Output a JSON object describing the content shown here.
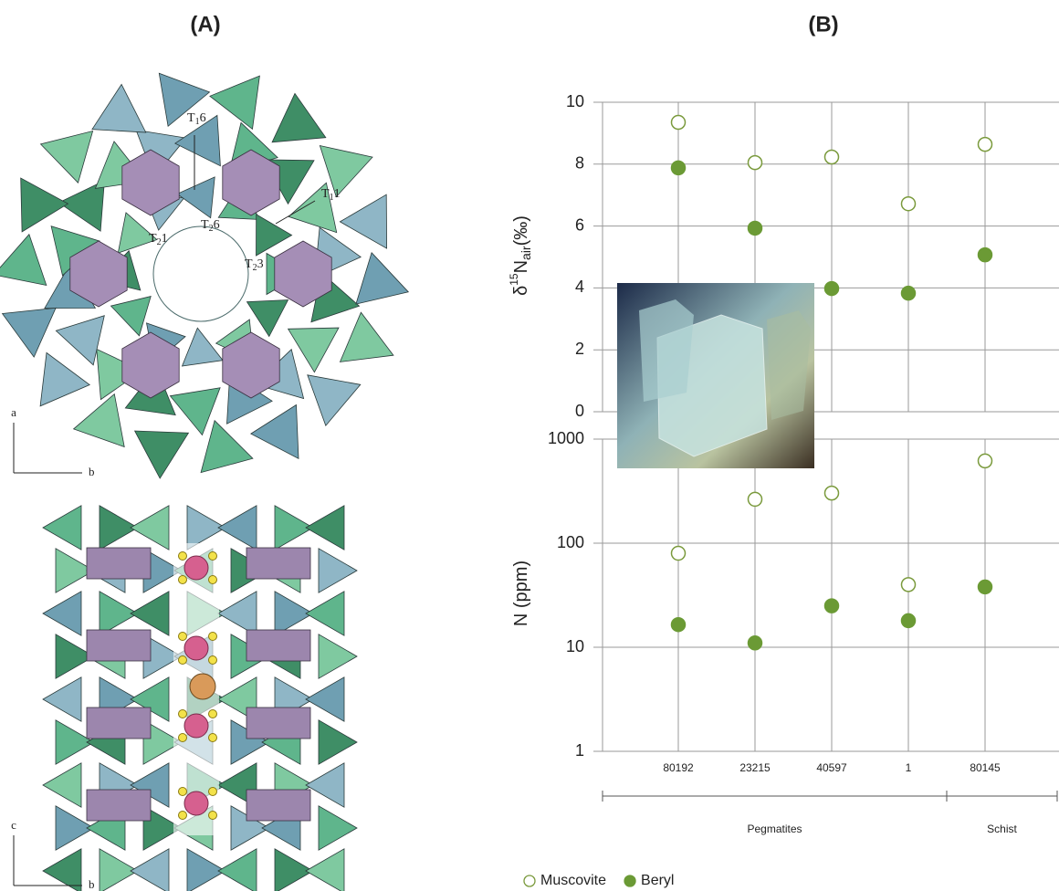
{
  "panels": {
    "left": "(A)",
    "right": "(B)"
  },
  "diagram": {
    "labels": [
      [
        "T",
        "1",
        "6"
      ],
      [
        "T",
        "1",
        "1"
      ],
      [
        "T",
        "2",
        "6"
      ],
      [
        "T",
        "2",
        "1"
      ],
      [
        "T",
        "2",
        "3"
      ]
    ],
    "axes_top": [
      "a",
      "b"
    ],
    "axes_bottom": [
      "c",
      "b"
    ]
  },
  "chart_data": [
    {
      "type": "scatter",
      "ylabel": [
        "δ",
        "15",
        "N",
        "air",
        "(‰)"
      ],
      "ylim": [
        0,
        10
      ],
      "yticks": [
        0,
        2,
        4,
        6,
        8,
        10
      ],
      "grid": true,
      "series": [
        {
          "marker": "open",
          "color": "#7a9a3c",
          "values": [
            9.35,
            8.05,
            8.23,
            6.72,
            8.64
          ]
        },
        {
          "marker": "filled",
          "color": "#6b9a35",
          "values": [
            7.88,
            5.93,
            3.98,
            3.83,
            5.07
          ]
        }
      ]
    },
    {
      "type": "scatter",
      "ylabel": [
        "N (ppm)"
      ],
      "log": true,
      "ylim": [
        1,
        1000
      ],
      "yticks": [
        1,
        10,
        100,
        1000
      ],
      "grid": true,
      "categories": [
        "80192",
        "23215",
        "40597",
        "1",
        "80145"
      ],
      "groups": [
        {
          "label": "Pegmatites",
          "count": 4
        },
        {
          "label": "Schist",
          "count": 1
        }
      ],
      "series": [
        {
          "name": "Muscovite",
          "marker": "open",
          "color": "#7a9a3c",
          "values": [
            80,
            264,
            303,
            40,
            617
          ]
        },
        {
          "name": "Beryl",
          "marker": "filled",
          "color": "#6b9a35",
          "values": [
            16.5,
            11,
            25,
            18,
            38
          ]
        }
      ]
    }
  ]
}
